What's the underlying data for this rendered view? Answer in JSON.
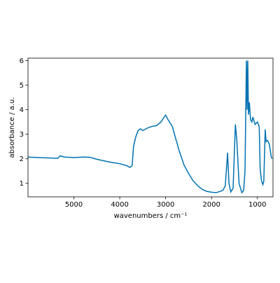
{
  "chart_data": {
    "type": "line",
    "xlabel": "wavenumbers / cm⁻¹",
    "ylabel": "absorbance / a.u.",
    "xlim": [
      6000,
      660
    ],
    "ylim": [
      0.45,
      6.1
    ],
    "xticks": [
      5000,
      4000,
      3000,
      2000,
      1000
    ],
    "yticks": [
      1,
      2,
      3,
      4,
      5,
      6
    ],
    "x_reversed": true,
    "grid": false,
    "series": [
      {
        "color": "#0072b2",
        "x": [
          6000,
          5500,
          5350,
          5300,
          5200,
          5000,
          4800,
          4650,
          4500,
          4200,
          4000,
          3850,
          3780,
          3730,
          3700,
          3650,
          3600,
          3550,
          3500,
          3400,
          3300,
          3200,
          3100,
          3050,
          3000,
          2950,
          2900,
          2850,
          2800,
          2700,
          2600,
          2500,
          2400,
          2300,
          2200,
          2100,
          2000,
          1900,
          1800,
          1750,
          1700,
          1650,
          1620,
          1580,
          1530,
          1480,
          1450,
          1400,
          1340,
          1300,
          1270,
          1240,
          1225,
          1210,
          1195,
          1175,
          1150,
          1120,
          1100,
          1050,
          1000,
          960,
          940,
          910,
          880,
          860,
          830,
          810,
          780,
          740,
          700,
          680
        ],
        "values": [
          2.07,
          2.03,
          2.02,
          2.12,
          2.07,
          2.05,
          2.07,
          2.06,
          1.98,
          1.86,
          1.8,
          1.72,
          1.65,
          1.72,
          2.5,
          2.9,
          3.15,
          3.22,
          3.15,
          3.25,
          3.32,
          3.35,
          3.5,
          3.65,
          3.78,
          3.6,
          3.45,
          3.3,
          2.95,
          2.3,
          1.75,
          1.4,
          1.1,
          0.9,
          0.75,
          0.67,
          0.64,
          0.62,
          0.68,
          0.72,
          0.9,
          2.25,
          1.0,
          0.65,
          0.8,
          3.4,
          2.8,
          1.0,
          0.62,
          0.7,
          1.5,
          6.0,
          4.0,
          6.0,
          3.8,
          4.3,
          3.6,
          3.5,
          3.7,
          3.4,
          3.5,
          3.3,
          1.6,
          1.1,
          0.95,
          1.1,
          3.2,
          2.7,
          2.75,
          2.6,
          2.1,
          2.0
        ]
      }
    ]
  }
}
